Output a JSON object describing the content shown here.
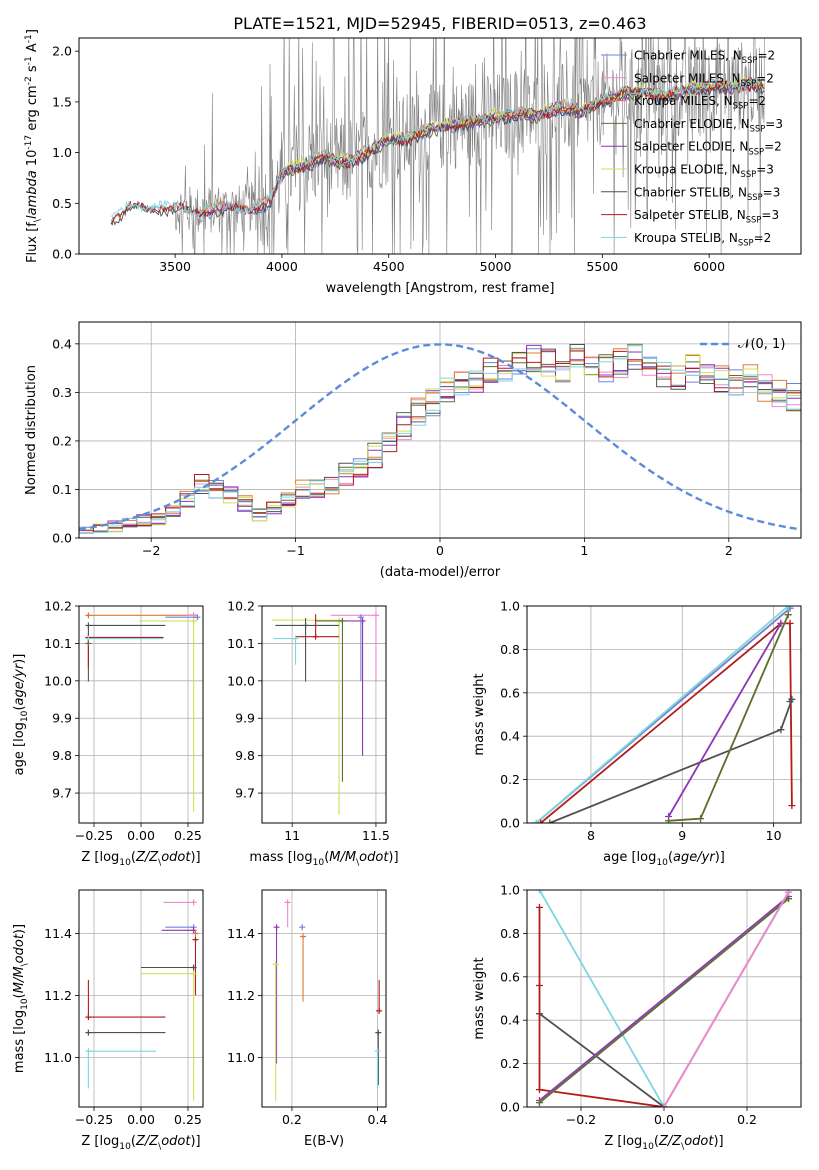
{
  "title": "PLATE=1521, MJD=52945, FIBERID=0513, z=0.463",
  "colors": {
    "Chabrier MILES": "#6f86d8",
    "Salpeter MILES": "#f08acb",
    "Kroupa MILES": "#e07a32",
    "Chabrier ELODIE": "#5c6e3a",
    "Salpeter ELODIE": "#8e35b8",
    "Kroupa ELODIE": "#cfe05a",
    "Chabrier STELIB": "#505050",
    "Salpeter STELIB": "#b21c1c",
    "Kroupa STELIB": "#7fd6e0",
    "data": "#808080",
    "normal": "#5b8bd9",
    "grid": "#b0b0b0"
  },
  "chart_data": [
    {
      "id": "spectrum",
      "type": "line",
      "xlabel": "wavelength [Angstrom, rest frame]",
      "ylabel": "Flux [f$_\\lambda$ 10$^{-17}$ erg cm$^{-2}$ s$^{-1}$ A$^{-1}$]",
      "xlim": [
        3050,
        6430
      ],
      "ylim": [
        0,
        2.13
      ],
      "xticks": [
        3500,
        4000,
        4500,
        5000,
        5500,
        6000
      ],
      "yticks": [
        0.0,
        0.5,
        1.0,
        1.5,
        2.0
      ],
      "grid": false,
      "legend_position": "right",
      "observed_range": [
        3200,
        6260
      ],
      "model_continuum": {
        "x": [
          3200,
          3300,
          3400,
          3500,
          3600,
          3700,
          3800,
          3900,
          3950,
          4000,
          4100,
          4200,
          4300,
          4400,
          4500,
          4600,
          4700,
          4800,
          4900,
          5000,
          5100,
          5200,
          5300,
          5400,
          5500,
          5600,
          5700,
          5800,
          5900,
          6000,
          6100,
          6200,
          6260
        ],
        "y": [
          0.33,
          0.47,
          0.46,
          0.45,
          0.42,
          0.45,
          0.44,
          0.48,
          0.52,
          0.8,
          0.88,
          0.95,
          0.9,
          1.0,
          1.12,
          1.15,
          1.23,
          1.28,
          1.3,
          1.35,
          1.38,
          1.37,
          1.45,
          1.4,
          1.52,
          1.58,
          1.6,
          1.55,
          1.62,
          1.65,
          1.64,
          1.68,
          1.66
        ]
      },
      "series": [
        {
          "name": "Chabrier MILES, N$_{SSP}$=2"
        },
        {
          "name": "Salpeter MILES, N$_{SSP}$=2"
        },
        {
          "name": "Kroupa MILES, N$_{SSP}$=2"
        },
        {
          "name": "Chabrier ELODIE, N$_{SSP}$=3"
        },
        {
          "name": "Salpeter ELODIE, N$_{SSP}$=2"
        },
        {
          "name": "Kroupa ELODIE, N$_{SSP}$=3"
        },
        {
          "name": "Chabrier STELIB, N$_{SSP}$=3"
        },
        {
          "name": "Salpeter STELIB, N$_{SSP}$=3"
        },
        {
          "name": "Kroupa STELIB, N$_{SSP}$=2"
        }
      ]
    },
    {
      "id": "residuals",
      "type": "line",
      "xlabel": "(data-model)/error",
      "ylabel": "Normed distribution",
      "xlim": [
        -2.5,
        2.5
      ],
      "ylim": [
        0,
        0.445
      ],
      "xticks": [
        -2,
        -1,
        0,
        1,
        2
      ],
      "yticks": [
        0.0,
        0.1,
        0.2,
        0.3,
        0.4
      ],
      "grid": true,
      "legend_position": "top-right",
      "legend": "𝒩(0, 1)",
      "reference_curve": "normal(0,1)",
      "bin_edges_start": -2.5,
      "bin_width": 0.1,
      "base_histogram": [
        0.02,
        0.02,
        0.025,
        0.03,
        0.035,
        0.04,
        0.055,
        0.08,
        0.11,
        0.1,
        0.09,
        0.07,
        0.05,
        0.06,
        0.08,
        0.1,
        0.1,
        0.11,
        0.13,
        0.14,
        0.17,
        0.2,
        0.23,
        0.26,
        0.28,
        0.3,
        0.32,
        0.33,
        0.35,
        0.34,
        0.36,
        0.37,
        0.36,
        0.35,
        0.37,
        0.36,
        0.35,
        0.36,
        0.37,
        0.35,
        0.34,
        0.33,
        0.35,
        0.34,
        0.33,
        0.32,
        0.34,
        0.31,
        0.3,
        0.29,
        0.27,
        0.25,
        0.24,
        0.22,
        0.2,
        0.19,
        0.17,
        0.16,
        0.15,
        0.14,
        0.13,
        0.11,
        0.1,
        0.09,
        0.09,
        0.1,
        0.08,
        0.07,
        0.07,
        0.06,
        0.05,
        0.04,
        0.035,
        0.03,
        0.028
      ]
    },
    {
      "id": "age_vs_Z",
      "type": "scatter",
      "xlabel": "Z [log$_{10}$($Z/Z_\\odot$)]",
      "ylabel": "age  [log$_{10}$($age/yr$)]",
      "xlim": [
        -0.33,
        0.33
      ],
      "ylim": [
        9.62,
        10.2
      ],
      "xticks": [
        -0.25,
        0.0,
        0.25
      ],
      "xticklabels": [
        "−0.25",
        "0.00",
        "0.25"
      ],
      "yticks": [
        9.7,
        9.8,
        9.9,
        10.0,
        10.1,
        10.2
      ],
      "grid": true,
      "points": [
        {
          "model": "Kroupa MILES",
          "x": -0.28,
          "y": 10.175,
          "xerr": [
            0.0,
            0.58
          ],
          "yerr": [
            0.0,
            0.0
          ]
        },
        {
          "model": "Salpeter MILES",
          "x": 0.28,
          "y": 10.176,
          "xerr": [
            0.04,
            0.0
          ],
          "yerr": [
            0.0,
            0.0
          ]
        },
        {
          "model": "Chabrier MILES",
          "x": 0.3,
          "y": 10.17,
          "xerr": [
            0.17,
            0.0
          ],
          "yerr": [
            0.0,
            0.0
          ]
        },
        {
          "model": "Kroupa ELODIE",
          "x": 0.28,
          "y": 10.16,
          "xerr": [
            0.29,
            0.0
          ],
          "yerr": [
            0.51,
            0.0
          ]
        },
        {
          "model": "Chabrier STELIB",
          "x": -0.28,
          "y": 10.148,
          "xerr": [
            0.0,
            0.41
          ],
          "yerr": [
            0.15,
            0.0
          ]
        },
        {
          "model": "Salpeter STELIB",
          "x": -0.28,
          "y": 10.116,
          "xerr": [
            0.0,
            0.4
          ],
          "yerr": [
            0.08,
            0.0
          ]
        },
        {
          "model": "Kroupa STELIB",
          "x": -0.28,
          "y": 10.113,
          "xerr": [
            0.0,
            0.4
          ],
          "yerr": [
            0.0,
            0.0
          ]
        },
        {
          "model": "Chabrier ELODIE",
          "x": -0.28,
          "y": 10.1,
          "xerr": [
            0.0,
            0.0
          ],
          "yerr": [
            0.0,
            0.0
          ]
        }
      ]
    },
    {
      "id": "age_vs_mass",
      "type": "scatter",
      "xlabel": "mass [log$_{10}$($M/M_\\odot$)]",
      "ylabel": "",
      "xlim": [
        10.82,
        11.56
      ],
      "ylim": [
        9.62,
        10.2
      ],
      "xticks": [
        11.0,
        11.5
      ],
      "yticks": [
        9.7,
        9.8,
        9.9,
        10.0,
        10.1,
        10.2
      ],
      "grid": true,
      "points": [
        {
          "model": "Salpeter MILES",
          "x": 11.5,
          "y": 10.175,
          "xerr": [
            0.27,
            0.0
          ],
          "yerr": [
            0.18,
            0.0
          ]
        },
        {
          "model": "Kroupa ELODIE",
          "x": 11.28,
          "y": 10.162,
          "xerr": [
            0.4,
            0.0
          ],
          "yerr": [
            0.52,
            0.0
          ]
        },
        {
          "model": "Chabrier STELIB",
          "x": 11.08,
          "y": 10.148,
          "xerr": [
            0.18,
            0.2
          ],
          "yerr": [
            0.15,
            0.02
          ]
        },
        {
          "model": "Salpeter STELIB",
          "x": 11.14,
          "y": 10.118,
          "xerr": [
            0.12,
            0.14
          ],
          "yerr": [
            0.0,
            0.06
          ]
        },
        {
          "model": "Salpeter ELODIE",
          "x": 11.42,
          "y": 10.16,
          "xerr": [
            0.14,
            0.0
          ],
          "yerr": [
            0.36,
            0.0
          ]
        },
        {
          "model": "Chabrier ELODIE",
          "x": 11.3,
          "y": 10.16,
          "xerr": [
            0.16,
            0.0
          ],
          "yerr": [
            0.43,
            0.0
          ]
        },
        {
          "model": "Kroupa STELIB",
          "x": 11.02,
          "y": 10.113,
          "xerr": [
            0.13,
            0.0
          ],
          "yerr": [
            0.07,
            0.0
          ]
        },
        {
          "model": "Chabrier MILES",
          "x": 11.41,
          "y": 10.17,
          "xerr": [
            0.0,
            0.0
          ],
          "yerr": [
            0.17,
            0.0
          ]
        }
      ]
    },
    {
      "id": "weight_vs_age",
      "type": "line",
      "xlabel": "age  [log$_{10}$($age/yr$)]",
      "ylabel": "mass weight",
      "xlim": [
        7.3,
        10.3
      ],
      "ylim": [
        0,
        1
      ],
      "xticks": [
        8,
        9,
        10
      ],
      "yticks": [
        0.0,
        0.2,
        0.4,
        0.6,
        0.8,
        1.0
      ],
      "grid": true,
      "series": [
        {
          "model": "Kroupa MILES",
          "x": [
            7.4,
            10.18
          ],
          "y": [
            0.0,
            0.99
          ]
        },
        {
          "model": "Chabrier MILES",
          "x": [
            7.4,
            10.18
          ],
          "y": [
            0.0,
            0.99
          ]
        },
        {
          "model": "Kroupa STELIB",
          "x": [
            7.4,
            10.16
          ],
          "y": [
            0.0,
            1.0
          ]
        },
        {
          "model": "Salpeter STELIB",
          "x": [
            7.45,
            10.08,
            10.18,
            10.2
          ],
          "y": [
            0.0,
            0.92,
            0.92,
            0.08
          ]
        },
        {
          "model": "Chabrier STELIB",
          "x": [
            7.55,
            10.08,
            10.2,
            10.18
          ],
          "y": [
            0.0,
            0.43,
            0.57,
            0.56
          ]
        },
        {
          "model": "Salpeter ELODIE",
          "x": [
            8.85,
            10.08
          ],
          "y": [
            0.03,
            0.92
          ]
        },
        {
          "model": "Kroupa ELODIE",
          "x": [
            8.85,
            9.2,
            10.16
          ],
          "y": [
            0.01,
            0.02,
            0.96
          ]
        },
        {
          "model": "Chabrier ELODIE",
          "x": [
            8.85,
            9.2,
            10.16
          ],
          "y": [
            0.01,
            0.02,
            0.96
          ]
        }
      ]
    },
    {
      "id": "mass_vs_Z",
      "type": "scatter",
      "xlabel": "Z [log$_{10}$($Z/Z_\\odot$)]",
      "ylabel": "mass [log$_{10}$($M/M_\\odot$)]",
      "xlim": [
        -0.33,
        0.33
      ],
      "ylim": [
        10.84,
        11.54
      ],
      "xticks": [
        -0.25,
        0.0,
        0.25
      ],
      "xticklabels": [
        "−0.25",
        "0.00",
        "0.25"
      ],
      "yticks": [
        11.0,
        11.2,
        11.4
      ],
      "grid": true,
      "points": [
        {
          "model": "Salpeter MILES",
          "x": 0.28,
          "y": 11.5,
          "xerr": [
            0.16,
            0.0
          ],
          "yerr": [
            0.0,
            0.0
          ]
        },
        {
          "model": "Chabrier MILES",
          "x": 0.28,
          "y": 11.42,
          "xerr": [
            0.15,
            0.0
          ],
          "yerr": [
            0.0,
            0.0
          ]
        },
        {
          "model": "Salpeter ELODIE",
          "x": 0.28,
          "y": 11.41,
          "xerr": [
            0.17,
            0.0
          ],
          "yerr": [
            0.0,
            0.0
          ]
        },
        {
          "model": "Kroupa MILES",
          "x": 0.29,
          "y": 11.4,
          "xerr": [
            0.0,
            0.0
          ],
          "yerr": [
            0.0,
            0.0
          ]
        },
        {
          "model": "Salpeter STELIB",
          "x": 0.29,
          "y": 11.38,
          "xerr": [
            0.0,
            0.0
          ],
          "yerr": [
            0.18,
            0.0
          ]
        },
        {
          "model": "Chabrier STELIB",
          "x": 0.28,
          "y": 11.29,
          "xerr": [
            0.28,
            0.0
          ],
          "yerr": [
            0.0,
            0.0
          ]
        },
        {
          "model": "Kroupa ELODIE",
          "x": 0.28,
          "y": 11.27,
          "xerr": [
            0.28,
            0.0
          ],
          "yerr": [
            0.41,
            0.0
          ]
        },
        {
          "model": "Salpeter STELIB",
          "x": -0.28,
          "y": 11.13,
          "xerr": [
            0.0,
            0.41
          ],
          "yerr": [
            0.0,
            0.12
          ]
        },
        {
          "model": "Chabrier STELIB",
          "x": -0.28,
          "y": 11.08,
          "xerr": [
            0.0,
            0.41
          ],
          "yerr": [
            0.0,
            0.0
          ]
        },
        {
          "model": "Kroupa STELIB",
          "x": -0.28,
          "y": 11.02,
          "xerr": [
            0.0,
            0.36
          ],
          "yerr": [
            0.12,
            0.0
          ]
        }
      ]
    },
    {
      "id": "mass_vs_ebv",
      "type": "scatter",
      "xlabel": "E(B-V)",
      "ylabel": "",
      "xlim": [
        0.13,
        0.42
      ],
      "ylim": [
        10.84,
        11.54
      ],
      "xticks": [
        0.2,
        0.4
      ],
      "yticks": [
        11.0,
        11.2,
        11.4
      ],
      "grid": true,
      "points": [
        {
          "model": "Salpeter MILES",
          "x": 0.19,
          "y": 11.5,
          "xerr": [
            0.0,
            0.0
          ],
          "yerr": [
            0.08,
            0.0
          ]
        },
        {
          "model": "Salpeter ELODIE",
          "x": 0.164,
          "y": 11.42,
          "xerr": [
            0.0,
            0.0
          ],
          "yerr": [
            0.44,
            0.0
          ]
        },
        {
          "model": "Kroupa ELODIE",
          "x": 0.162,
          "y": 11.3,
          "xerr": [
            0.0,
            0.0
          ],
          "yerr": [
            0.44,
            0.0
          ]
        },
        {
          "model": "Chabrier MILES",
          "x": 0.224,
          "y": 11.42,
          "xerr": [
            0.0,
            0.0
          ],
          "yerr": [
            0.0,
            0.0
          ]
        },
        {
          "model": "Kroupa MILES",
          "x": 0.226,
          "y": 11.39,
          "xerr": [
            0.0,
            0.0
          ],
          "yerr": [
            0.21,
            0.0
          ]
        },
        {
          "model": "Salpeter STELIB",
          "x": 0.404,
          "y": 11.15,
          "xerr": [
            0.0,
            0.0
          ],
          "yerr": [
            0.0,
            0.1
          ]
        },
        {
          "model": "Chabrier STELIB",
          "x": 0.402,
          "y": 11.08,
          "xerr": [
            0.0,
            0.0
          ],
          "yerr": [
            0.17,
            0.0
          ]
        },
        {
          "model": "Kroupa STELIB",
          "x": 0.4,
          "y": 11.02,
          "xerr": [
            0.0,
            0.0
          ],
          "yerr": [
            0.12,
            0.0
          ]
        }
      ]
    },
    {
      "id": "weight_vs_Z",
      "type": "line",
      "xlabel": "Z [log$_{10}$($Z/Z_\\odot$)]",
      "ylabel": "mass weight",
      "xlim": [
        -0.33,
        0.33
      ],
      "ylim": [
        0,
        1
      ],
      "xticks": [
        -0.2,
        0.0,
        0.2
      ],
      "xticklabels": [
        "−0.2",
        "0.0",
        "0.2"
      ],
      "yticks": [
        0.0,
        0.2,
        0.4,
        0.6,
        0.8,
        1.0
      ],
      "grid": true,
      "series": [
        {
          "model": "Kroupa STELIB",
          "x": [
            -0.3,
            0.0
          ],
          "y": [
            1.0,
            0.0
          ]
        },
        {
          "model": "Chabrier STELIB",
          "x": [
            -0.3,
            0.0
          ],
          "y": [
            0.43,
            0.0
          ]
        },
        {
          "model": "Salpeter STELIB",
          "x": [
            -0.3,
            -0.3,
            -0.3,
            0.0
          ],
          "y": [
            0.92,
            0.56,
            0.08,
            0.0
          ]
        },
        {
          "model": "Salpeter ELODIE",
          "x": [
            -0.3,
            0.3
          ],
          "y": [
            0.03,
            0.97
          ]
        },
        {
          "model": "Kroupa ELODIE",
          "x": [
            -0.3,
            0.3
          ],
          "y": [
            0.02,
            0.96
          ]
        },
        {
          "model": "Chabrier ELODIE",
          "x": [
            -0.3,
            0.3
          ],
          "y": [
            0.02,
            0.96
          ]
        },
        {
          "model": "Kroupa MILES",
          "x": [
            0.0,
            0.3
          ],
          "y": [
            0.0,
            0.99
          ]
        },
        {
          "model": "Chabrier MILES",
          "x": [
            0.0,
            0.3
          ],
          "y": [
            0.0,
            0.99
          ]
        },
        {
          "model": "Salpeter MILES",
          "x": [
            0.0,
            0.3
          ],
          "y": [
            0.0,
            0.99
          ]
        }
      ]
    }
  ]
}
